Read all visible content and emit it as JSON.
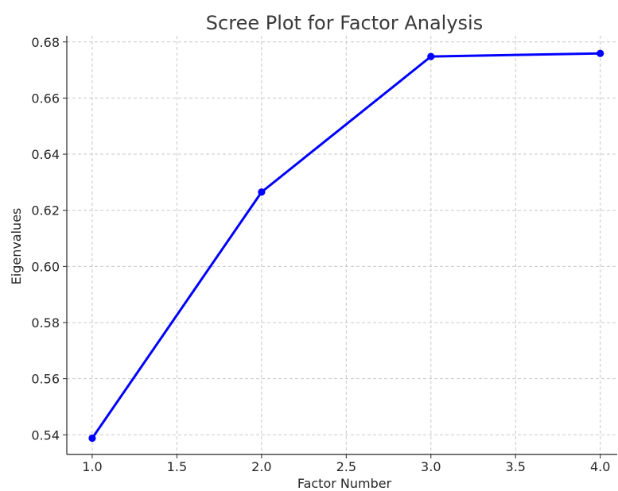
{
  "chart_data": {
    "type": "line",
    "title": "Scree Plot for Factor Analysis",
    "xlabel": "Factor Number",
    "ylabel": "Eigenvalues",
    "x": [
      1,
      2,
      3,
      4
    ],
    "series": [
      {
        "values": [
          0.5388,
          0.6265,
          0.6748,
          0.6759
        ],
        "color": "#0000ff",
        "marker": "circle"
      }
    ],
    "xlim": [
      0.85,
      4.1
    ],
    "ylim": [
      0.533,
      0.6822
    ],
    "xticks": [
      1.0,
      1.5,
      2.0,
      2.5,
      3.0,
      3.5,
      4.0
    ],
    "xtick_labels": [
      "1.0",
      "1.5",
      "2.0",
      "2.5",
      "3.0",
      "3.5",
      "4.0"
    ],
    "yticks": [
      0.54,
      0.56,
      0.58,
      0.6,
      0.62,
      0.64,
      0.66,
      0.68
    ],
    "ytick_labels": [
      "0.54",
      "0.56",
      "0.58",
      "0.60",
      "0.62",
      "0.64",
      "0.66",
      "0.68"
    ],
    "grid": true,
    "grid_style": "dashed",
    "legend": "none"
  }
}
